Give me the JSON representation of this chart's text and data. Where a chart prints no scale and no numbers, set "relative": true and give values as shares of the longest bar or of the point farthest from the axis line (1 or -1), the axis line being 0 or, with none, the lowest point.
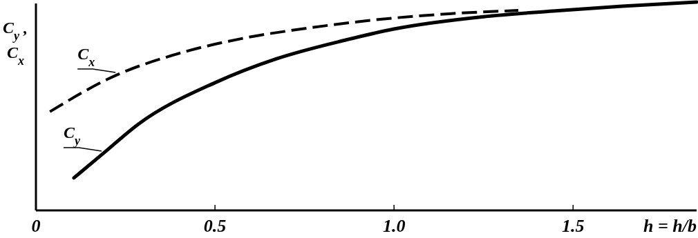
{
  "chart_data": {
    "type": "line",
    "relative": true,
    "xlabel": "h = h/b",
    "ylabel": "C$_{y}$, C$_{x}$",
    "xlim": [
      0,
      1.845
    ],
    "xticks": [
      0,
      0.5,
      {
        "value": 1,
        "label": "1.0"
      },
      1.5
    ],
    "grid": false,
    "series": [
      {
        "name": "C$_{x}$",
        "color": "#000000",
        "line_style": "dashed",
        "x": [
          0.039,
          0.228,
          0.382,
          0.575,
          0.768,
          0.961,
          1.154,
          1.347
        ],
        "values": [
          0.474,
          0.652,
          0.745,
          0.825,
          0.877,
          0.917,
          0.944,
          0.96
        ]
      },
      {
        "name": "C$_{y}$",
        "color": "#000000",
        "line_style": "solid",
        "x": [
          0.106,
          0.189,
          0.286,
          0.5,
          0.672,
          0.865,
          1.0,
          1.25,
          1.444,
          1.637,
          1.845
        ],
        "values": [
          0.156,
          0.275,
          0.414,
          0.613,
          0.728,
          0.818,
          0.871,
          0.93,
          0.957,
          0.98,
          1.0
        ]
      }
    ]
  }
}
